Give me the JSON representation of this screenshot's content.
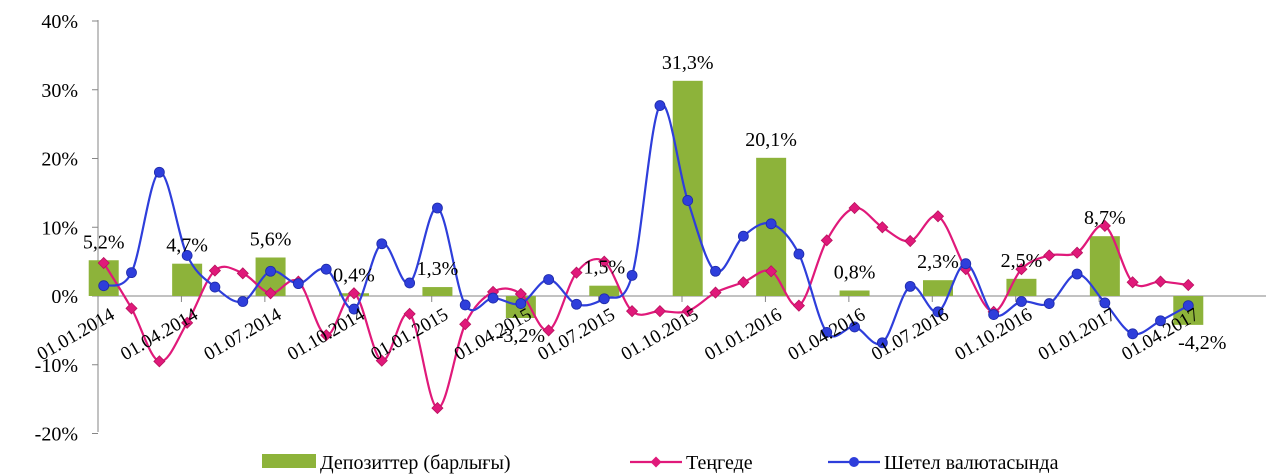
{
  "chart_data": {
    "type": "bar",
    "x_labels": [
      "01.01.2014",
      "01.04.2014",
      "01.07.2014",
      "01.10.2014",
      "01.01.2015",
      "01.04.2015",
      "01.07.2015",
      "01.10.2015",
      "01.01.2016",
      "01.04.2016",
      "01.07.2016",
      "01.10.2016",
      "01.01.2017",
      "01.04.2017"
    ],
    "y_ticks": [
      "40%",
      "30%",
      "20%",
      "10%",
      "0%",
      "-10%",
      "-20%"
    ],
    "ylim": [
      -20,
      40
    ],
    "series": [
      {
        "name": "Депозиттер (барлығы)",
        "kind": "bar",
        "color": "#8db33a",
        "points": [
          {
            "x": 0,
            "value": 5.2,
            "label": "5,2%"
          },
          {
            "x": 1,
            "value": 4.7,
            "label": "4,7%"
          },
          {
            "x": 2,
            "value": 5.6,
            "label": "5,6%"
          },
          {
            "x": 3,
            "value": 0.4,
            "label": "0,4%"
          },
          {
            "x": 4,
            "value": 1.3,
            "label": "1,3%"
          },
          {
            "x": 5,
            "value": -3.2,
            "label": "-3,2%"
          },
          {
            "x": 6,
            "value": 1.5,
            "label": "1,5%"
          },
          {
            "x": 7,
            "value": 31.3,
            "label": "31,3%"
          },
          {
            "x": 8,
            "value": 20.1,
            "label": "20,1%"
          },
          {
            "x": 9,
            "value": 0.8,
            "label": "0,8%"
          },
          {
            "x": 10,
            "value": 2.3,
            "label": "2,3%"
          },
          {
            "x": 11,
            "value": 2.5,
            "label": "2,5%"
          },
          {
            "x": 12,
            "value": 8.7,
            "label": "8,7%"
          },
          {
            "x": 13,
            "value": -4.2,
            "label": "-4,2%"
          }
        ]
      },
      {
        "name": "Теңгеде",
        "kind": "line",
        "color": "#e0197a",
        "marker": "diamond",
        "x": [
          0,
          0.333,
          0.667,
          1,
          1.333,
          1.667,
          2,
          2.333,
          2.667,
          3,
          3.333,
          3.667,
          4,
          4.333,
          4.667,
          5,
          5.333,
          5.667,
          6,
          6.333,
          6.667,
          7,
          7.333,
          7.667,
          8,
          8.333,
          8.667,
          9,
          9.333,
          9.667,
          10,
          10.333,
          10.667,
          11,
          11.333,
          11.667,
          12,
          12.333,
          12.667,
          13
        ],
        "values": [
          4.8,
          -1.8,
          -9.5,
          -3.9,
          3.7,
          3.3,
          0.4,
          2.1,
          -5.7,
          0.4,
          -9.4,
          -2.6,
          -16.3,
          -4.1,
          0.6,
          0.3,
          -5.0,
          3.4,
          5.0,
          -2.2,
          -2.2,
          -2.2,
          0.5,
          2.0,
          3.6,
          -1.4,
          8.1,
          12.8,
          10.0,
          8.0,
          11.6,
          3.9,
          -2.3,
          3.9,
          5.9,
          6.3,
          10.2,
          2.0,
          2.1,
          1.6
        ]
      },
      {
        "name": "Шетел валютасында",
        "kind": "line",
        "color": "#2e3edb",
        "marker": "circle",
        "x": [
          0,
          0.333,
          0.667,
          1,
          1.333,
          1.667,
          2,
          2.333,
          2.667,
          3,
          3.333,
          3.667,
          4,
          4.333,
          4.667,
          5,
          5.333,
          5.667,
          6,
          6.333,
          6.667,
          7,
          7.333,
          7.667,
          8,
          8.333,
          8.667,
          9,
          9.333,
          9.667,
          10,
          10.333,
          10.667,
          11,
          11.333,
          11.667,
          12,
          12.333,
          12.667,
          13
        ],
        "values": [
          1.5,
          3.4,
          18.0,
          5.9,
          1.3,
          -0.8,
          3.6,
          1.8,
          3.9,
          -1.9,
          7.6,
          1.9,
          12.8,
          -1.3,
          -0.3,
          -1.1,
          2.4,
          -1.2,
          -0.4,
          3.0,
          27.7,
          13.9,
          3.6,
          8.7,
          10.5,
          6.1,
          -5.3,
          -4.5,
          -6.8,
          1.4,
          -2.3,
          4.7,
          -2.7,
          -0.8,
          -1.1,
          3.2,
          -1.0,
          -5.5,
          -3.6,
          -1.4
        ]
      }
    ],
    "legend": {
      "position": "bottom",
      "items": [
        {
          "label": "Депозиттер (барлығы)",
          "symbol": "bar",
          "color": "#8db33a"
        },
        {
          "label": "Теңгеде",
          "symbol": "line-diamond",
          "color": "#e0197a"
        },
        {
          "label": "Шетел валютасында",
          "symbol": "line-circle",
          "color": "#2e3edb"
        }
      ]
    },
    "grid": false
  }
}
